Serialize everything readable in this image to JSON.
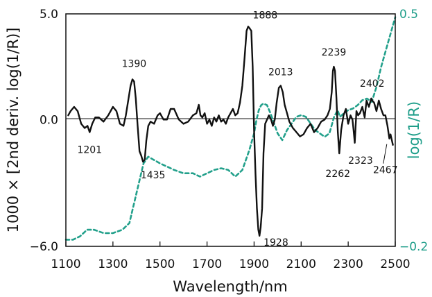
{
  "chart_data": {
    "type": "line",
    "xlabel": "Wavelength/nm",
    "ylabel_left": "1000 × [2nd deriv. log(1/R)]",
    "ylabel_right": "log(1/R)",
    "x_ticks": [
      "1100",
      "1300",
      "1500",
      "1700",
      "1900",
      "2100",
      "2300",
      "2500"
    ],
    "xlim": [
      1100,
      2500
    ],
    "ylim_left": [
      -6.0,
      5.0
    ],
    "ylim_right": [
      -0.2,
      0.5
    ],
    "y_left_ticks": [
      "5.0",
      "0.0",
      "−6.0"
    ],
    "y_left_tick_values": [
      5.0,
      0.0,
      -6.0
    ],
    "y_right_ticks": [
      "0.5",
      "−0.2"
    ],
    "y_right_tick_values": [
      0.5,
      -0.2
    ],
    "zero_line": true,
    "colors": {
      "axis": "#111111",
      "secondary": "#1f9e8a",
      "derivative": "#111111",
      "absorbance": "#22a08b"
    },
    "series": [
      {
        "axis": "left",
        "style": "solid",
        "x": [
          1110,
          1120,
          1135,
          1150,
          1165,
          1180,
          1192,
          1201,
          1212,
          1225,
          1240,
          1260,
          1280,
          1300,
          1315,
          1330,
          1345,
          1355,
          1365,
          1375,
          1383,
          1390,
          1397,
          1405,
          1413,
          1420,
          1428,
          1435,
          1442,
          1450,
          1460,
          1475,
          1490,
          1500,
          1515,
          1530,
          1545,
          1560,
          1580,
          1600,
          1620,
          1640,
          1655,
          1665,
          1672,
          1680,
          1690,
          1700,
          1710,
          1720,
          1730,
          1740,
          1750,
          1760,
          1770,
          1780,
          1790,
          1800,
          1810,
          1820,
          1830,
          1840,
          1850,
          1860,
          1868,
          1875,
          1882,
          1888,
          1894,
          1900,
          1906,
          1912,
          1918,
          1923,
          1928,
          1934,
          1940,
          1947,
          1955,
          1963,
          1972,
          1980,
          1988,
          1996,
          2005,
          2013,
          2022,
          2030,
          2040,
          2050,
          2065,
          2080,
          2095,
          2110,
          2125,
          2140,
          2155,
          2170,
          2185,
          2200,
          2212,
          2222,
          2230,
          2235,
          2239,
          2244,
          2250,
          2256,
          2262,
          2270,
          2280,
          2290,
          2300,
          2310,
          2318,
          2323,
          2328,
          2335,
          2342,
          2350,
          2360,
          2370,
          2378,
          2388,
          2398,
          2402,
          2410,
          2420,
          2430,
          2440,
          2450,
          2458,
          2467,
          2475,
          2480,
          2490
        ],
        "y": [
          0.2,
          0.4,
          0.6,
          0.4,
          -0.2,
          -0.4,
          -0.3,
          -0.6,
          -0.2,
          0.1,
          0.1,
          -0.1,
          0.2,
          0.6,
          0.4,
          -0.2,
          -0.3,
          0.2,
          0.9,
          1.6,
          1.9,
          1.8,
          1.0,
          -0.3,
          -1.5,
          -1.7,
          -2.0,
          -1.9,
          -1.0,
          -0.3,
          -0.1,
          -0.2,
          0.2,
          0.3,
          0.0,
          0.0,
          0.5,
          0.5,
          0.0,
          -0.2,
          -0.1,
          0.2,
          0.3,
          0.7,
          0.2,
          0.1,
          0.3,
          -0.2,
          0.0,
          -0.3,
          0.1,
          -0.1,
          0.2,
          -0.1,
          0.0,
          -0.2,
          0.1,
          0.3,
          0.5,
          0.2,
          0.3,
          0.8,
          1.6,
          3.0,
          4.2,
          4.4,
          4.3,
          4.2,
          2.5,
          -0.5,
          -2.6,
          -4.2,
          -5.2,
          -5.5,
          -5.1,
          -4.2,
          -1.6,
          -0.2,
          0.0,
          0.2,
          0.0,
          -0.3,
          0.0,
          0.8,
          1.5,
          1.6,
          1.3,
          0.7,
          0.3,
          -0.1,
          -0.4,
          -0.6,
          -0.8,
          -0.7,
          -0.4,
          -0.2,
          -0.6,
          -0.4,
          -0.1,
          0.0,
          0.2,
          0.5,
          1.3,
          2.3,
          2.5,
          2.3,
          1.0,
          -0.6,
          -1.6,
          -0.5,
          0.2,
          0.5,
          -0.2,
          0.2,
          0.0,
          -0.5,
          -1.1,
          0.4,
          0.2,
          0.3,
          0.6,
          0.1,
          0.9,
          0.6,
          1.0,
          0.9,
          0.8,
          0.4,
          0.9,
          0.5,
          0.2,
          0.2,
          -0.3,
          -0.9,
          -0.7,
          -1.2
        ]
      },
      {
        "axis": "right",
        "style": "dashed",
        "x": [
          1100,
          1130,
          1160,
          1190,
          1220,
          1260,
          1300,
          1340,
          1370,
          1400,
          1430,
          1450,
          1475,
          1500,
          1530,
          1560,
          1600,
          1640,
          1670,
          1700,
          1730,
          1760,
          1790,
          1820,
          1850,
          1880,
          1900,
          1910,
          1920,
          1930,
          1940,
          1955,
          1970,
          1985,
          2000,
          2020,
          2040,
          2060,
          2080,
          2100,
          2120,
          2140,
          2160,
          2180,
          2200,
          2220,
          2240,
          2255,
          2265,
          2280,
          2300,
          2320,
          2340,
          2360,
          2380,
          2400,
          2420,
          2440,
          2460,
          2480,
          2500
        ],
        "y": [
          -0.18,
          -0.18,
          -0.17,
          -0.15,
          -0.15,
          -0.16,
          -0.16,
          -0.15,
          -0.13,
          -0.04,
          0.05,
          0.07,
          0.06,
          0.05,
          0.04,
          0.03,
          0.02,
          0.02,
          0.01,
          0.02,
          0.03,
          0.035,
          0.03,
          0.01,
          0.03,
          0.09,
          0.14,
          0.18,
          0.21,
          0.225,
          0.23,
          0.225,
          0.2,
          0.17,
          0.14,
          0.12,
          0.15,
          0.17,
          0.19,
          0.195,
          0.19,
          0.17,
          0.15,
          0.14,
          0.13,
          0.14,
          0.19,
          0.21,
          0.19,
          0.2,
          0.21,
          0.215,
          0.225,
          0.24,
          0.245,
          0.235,
          0.28,
          0.34,
          0.39,
          0.44,
          0.49
        ]
      }
    ],
    "annotations": [
      {
        "text": "1201",
        "x": 1201,
        "y": -0.6
      },
      {
        "text": "1390",
        "x": 1390,
        "y": 1.9
      },
      {
        "text": "1435",
        "x": 1435,
        "y": -2.0
      },
      {
        "text": "1888",
        "x": 1888,
        "y": 4.4
      },
      {
        "text": "1928",
        "x": 1928,
        "y": -5.5
      },
      {
        "text": "2013",
        "x": 2013,
        "y": 1.6
      },
      {
        "text": "2239",
        "x": 2239,
        "y": 2.5
      },
      {
        "text": "2262",
        "x": 2262,
        "y": -1.6
      },
      {
        "text": "2323",
        "x": 2323,
        "y": -1.1
      },
      {
        "text": "2402",
        "x": 2402,
        "y": 0.9
      },
      {
        "text": "2467",
        "x": 2467,
        "y": -0.9
      }
    ]
  }
}
